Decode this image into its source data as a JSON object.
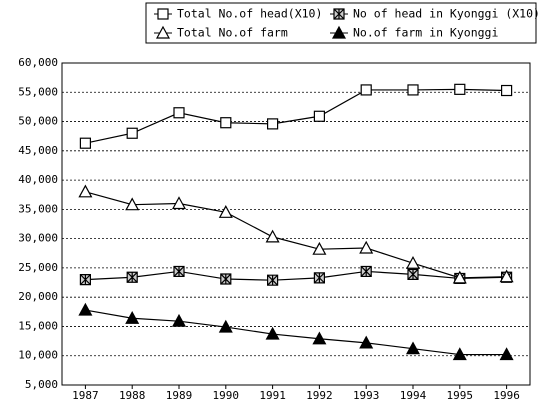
{
  "chart_data": {
    "type": "line",
    "categories": [
      "1987",
      "1988",
      "1989",
      "1990",
      "1991",
      "1992",
      "1993",
      "1994",
      "1995",
      "1996"
    ],
    "series": [
      {
        "name": "Total No.of head(X10)",
        "color": "#000000",
        "marker": "open-square",
        "values": [
          46300,
          48000,
          51500,
          49800,
          49600,
          50900,
          55400,
          55400,
          55500,
          55300
        ]
      },
      {
        "name": "No of head in Kyonggi (X10)",
        "color": "#000000",
        "marker": "hatched-square",
        "values": [
          23000,
          23400,
          24400,
          23100,
          22900,
          23300,
          24400,
          23900,
          23200,
          23400
        ]
      },
      {
        "name": "Total No.of farm",
        "color": "#000000",
        "marker": "open-triangle",
        "values": [
          38000,
          35800,
          36000,
          34500,
          30300,
          28200,
          28400,
          25800,
          23300,
          23500
        ]
      },
      {
        "name": "No.of farm in Kyonggi",
        "color": "#000000",
        "marker": "filled-triangle",
        "values": [
          17800,
          16400,
          15900,
          14900,
          13700,
          12900,
          12200,
          11200,
          10200,
          10200
        ]
      }
    ],
    "ylim": [
      5000,
      60000
    ],
    "yticks": [
      {
        "value": 5000,
        "label": "5,000"
      },
      {
        "value": 10000,
        "label": "10,000"
      },
      {
        "value": 15000,
        "label": "15,000"
      },
      {
        "value": 20000,
        "label": "20,000"
      },
      {
        "value": 25000,
        "label": "25,000"
      },
      {
        "value": 30000,
        "label": "30,000"
      },
      {
        "value": 35000,
        "label": "35,000"
      },
      {
        "value": 40000,
        "label": "40,000"
      },
      {
        "value": 45000,
        "label": "45,000"
      },
      {
        "value": 50000,
        "label": "50,000"
      },
      {
        "value": 55000,
        "label": "55,000"
      },
      {
        "value": 60000,
        "label": "60,000"
      }
    ],
    "grid": true,
    "legend": "top"
  }
}
